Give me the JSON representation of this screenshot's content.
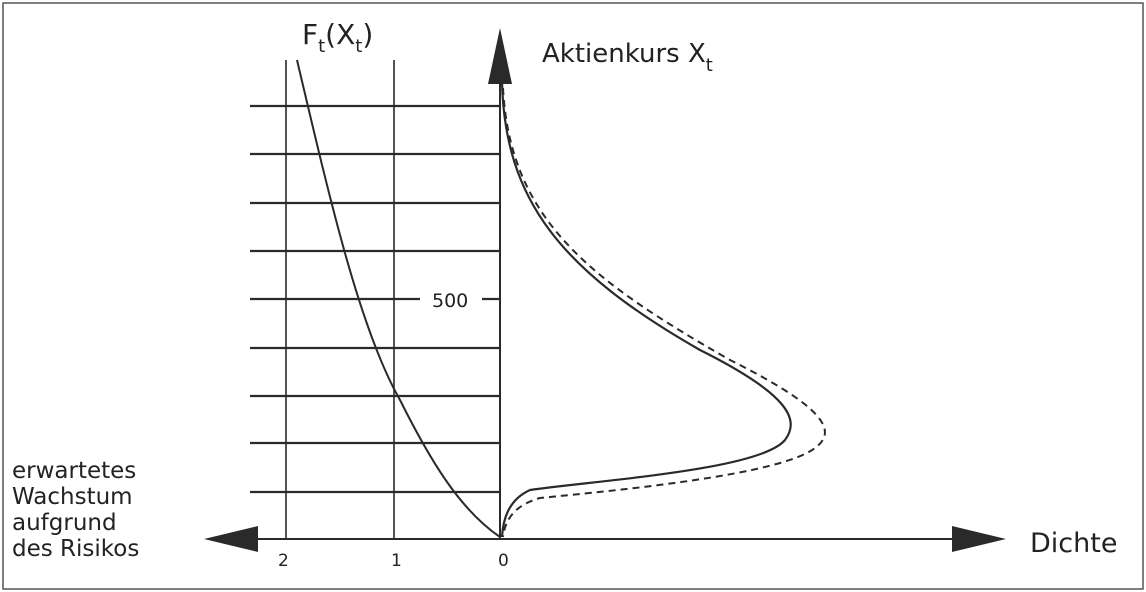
{
  "diagram": {
    "left_curve_label": "F",
    "left_curve_label_sub": "t",
    "left_curve_label_paren_open": "(X",
    "left_curve_label_paren_sub": "t",
    "left_curve_label_paren_close": ")",
    "y_axis_label": "Aktienkurs X",
    "y_axis_label_sub": "t",
    "x_axis_right_label": "Dichte",
    "x_axis_left_label_lines": [
      "erwartetes",
      "Wachstum",
      "aufgrund",
      "des Risikos"
    ],
    "y_tick_label": "500",
    "x_tick_labels": [
      "2",
      "1",
      "0"
    ]
  },
  "colors": {
    "line": "#2a2a2a",
    "frame": "#555555",
    "background": "#ffffff"
  }
}
